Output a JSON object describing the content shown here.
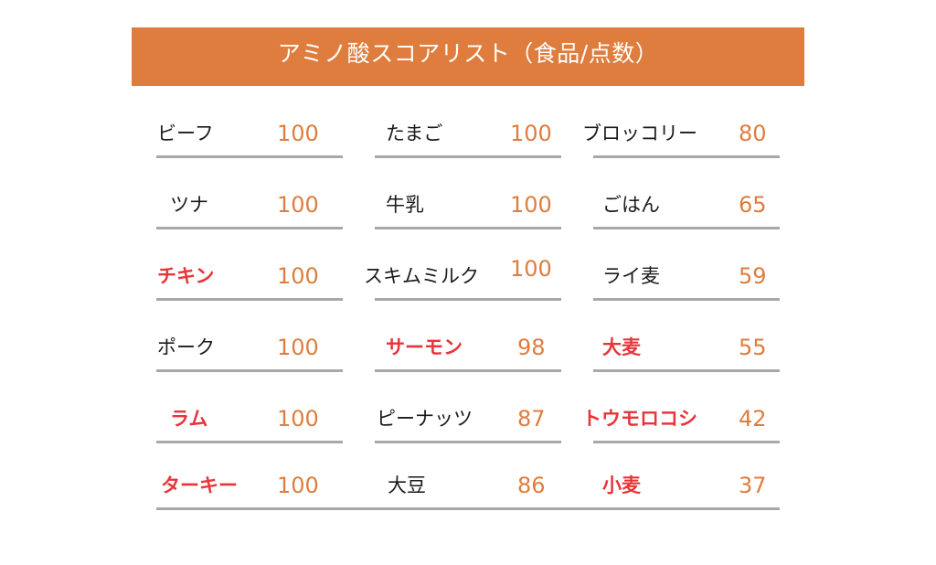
{
  "title": "アミノ酸スコアリスト（食品/点数）",
  "columns": [
    {
      "items": [
        {
          "name": "ビーフ",
          "score": "100",
          "highlight": false
        },
        {
          "name": "ツナ",
          "score": "100",
          "highlight": false
        },
        {
          "name": "チキン",
          "score": "100",
          "highlight": true
        },
        {
          "name": "ポーク",
          "score": "100",
          "highlight": false
        },
        {
          "name": "ラム",
          "score": "100",
          "highlight": true
        },
        {
          "name": "ターキー",
          "score": "100",
          "highlight": true
        }
      ]
    },
    {
      "items": [
        {
          "name": "たまご",
          "score": "100",
          "highlight": false
        },
        {
          "name": "牛乳",
          "score": "100",
          "highlight": false
        },
        {
          "name": "スキムミルク",
          "score": "100",
          "highlight": false
        },
        {
          "name": "サーモン",
          "score": "98",
          "highlight": true
        },
        {
          "name": "ピーナッツ",
          "score": "87",
          "highlight": false
        },
        {
          "name": "大豆",
          "score": "86",
          "highlight": false
        }
      ]
    },
    {
      "items": [
        {
          "name": "ブロッコリー",
          "score": "80",
          "highlight": false
        },
        {
          "name": "ごはん",
          "score": "65",
          "highlight": false
        },
        {
          "name": "ライ麦",
          "score": "59",
          "highlight": false
        },
        {
          "name": "大麦",
          "score": "55",
          "highlight": true
        },
        {
          "name": "トウモロコシ",
          "score": "42",
          "highlight": true
        },
        {
          "name": "小麦",
          "score": "37",
          "highlight": true
        }
      ]
    }
  ],
  "colors": {
    "banner": "#DE7D3D",
    "score": "#DE7D3D",
    "highlight": "#E8343A",
    "rule": "#A8A8A8"
  }
}
